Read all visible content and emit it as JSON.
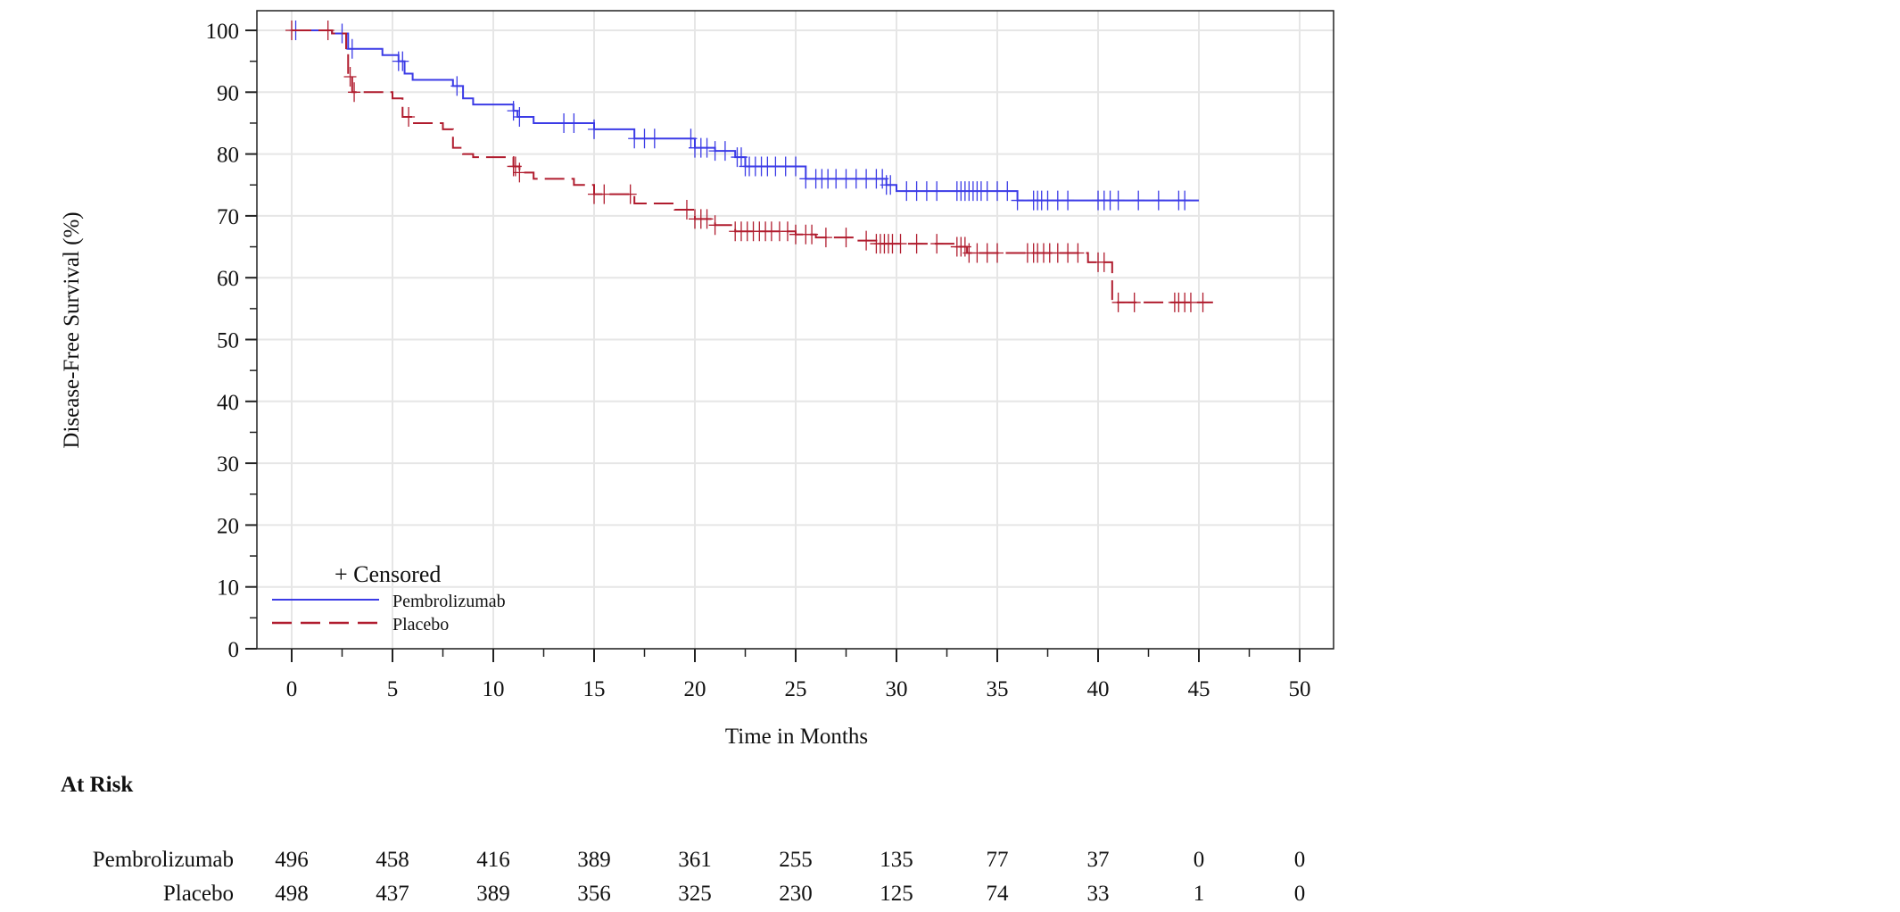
{
  "chart_data": {
    "type": "line",
    "subtype": "kaplan-meier step",
    "xlabel": "Time in Months",
    "ylabel": "Disease-Free Survival (%)",
    "xlim": [
      0,
      50
    ],
    "ylim": [
      0,
      100
    ],
    "xticks": [
      0,
      5,
      10,
      15,
      20,
      25,
      30,
      35,
      40,
      45,
      50
    ],
    "yticks": [
      0,
      10,
      20,
      30,
      40,
      50,
      60,
      70,
      80,
      90,
      100
    ],
    "grid": true,
    "legend": {
      "placement": "bottom-left",
      "censored_label": "+ Censored",
      "entries": [
        "Pembrolizumab",
        "Placebo"
      ]
    },
    "series": [
      {
        "name": "Pembrolizumab",
        "color": "#3b3be6",
        "style": "solid",
        "steps": [
          [
            0,
            100
          ],
          [
            2,
            99.5
          ],
          [
            2.8,
            97
          ],
          [
            4.5,
            96
          ],
          [
            5.3,
            95
          ],
          [
            5.6,
            93
          ],
          [
            6,
            92
          ],
          [
            8,
            91
          ],
          [
            8.5,
            89
          ],
          [
            9,
            88
          ],
          [
            11,
            87
          ],
          [
            11.2,
            86
          ],
          [
            12,
            85
          ],
          [
            15,
            84
          ],
          [
            17,
            82.5
          ],
          [
            20,
            81
          ],
          [
            21,
            80.5
          ],
          [
            22,
            79.5
          ],
          [
            22.5,
            78
          ],
          [
            25.5,
            76
          ],
          [
            29.5,
            75
          ],
          [
            30,
            74
          ],
          [
            36,
            72.5
          ],
          [
            45,
            72.5
          ]
        ],
        "censored": [
          0.2,
          2.5,
          3,
          5.3,
          5.5,
          8.2,
          11,
          11.3,
          13.5,
          14,
          15,
          17,
          17.5,
          18,
          19.8,
          20,
          20.3,
          20.6,
          21,
          21.5,
          22.1,
          22.3,
          22.5,
          22.7,
          23,
          23.3,
          23.6,
          24,
          24.5,
          25,
          25.5,
          26,
          26.3,
          26.6,
          27,
          27.5,
          28,
          28.5,
          29,
          29.3,
          29.5,
          29.7,
          30.5,
          31,
          31.5,
          32,
          33,
          33.2,
          33.4,
          33.6,
          33.8,
          34,
          34.2,
          34.5,
          35,
          35.5,
          36,
          36.8,
          37,
          37.2,
          37.5,
          38,
          38.5,
          40,
          40.3,
          40.6,
          41,
          42,
          43,
          44,
          44.3
        ]
      },
      {
        "name": "Placebo",
        "color": "#b01c2e",
        "style": "dashed",
        "steps": [
          [
            0,
            100
          ],
          [
            2,
            99.5
          ],
          [
            2.7,
            96
          ],
          [
            2.8,
            92.5
          ],
          [
            3,
            90
          ],
          [
            5,
            89
          ],
          [
            5.5,
            86
          ],
          [
            6,
            85
          ],
          [
            7.5,
            84
          ],
          [
            8,
            81
          ],
          [
            8.5,
            80
          ],
          [
            9,
            79.5
          ],
          [
            11,
            78
          ],
          [
            11.3,
            77
          ],
          [
            12,
            76
          ],
          [
            14,
            75
          ],
          [
            15,
            73.5
          ],
          [
            17,
            72
          ],
          [
            19,
            71
          ],
          [
            20,
            69.5
          ],
          [
            21,
            68.5
          ],
          [
            22,
            67.5
          ],
          [
            25,
            67
          ],
          [
            26,
            66.5
          ],
          [
            28,
            66
          ],
          [
            29,
            65.5
          ],
          [
            33,
            65
          ],
          [
            33.5,
            64
          ],
          [
            39.5,
            62.5
          ],
          [
            40.7,
            56
          ],
          [
            45.7,
            56
          ]
        ],
        "censored": [
          0,
          1.8,
          2.9,
          3.1,
          5.8,
          11,
          11.1,
          11.3,
          15,
          15.5,
          16.8,
          19.6,
          20,
          20.3,
          20.6,
          21,
          22,
          22.3,
          22.6,
          22.9,
          23.2,
          23.5,
          23.8,
          24.2,
          24.6,
          25,
          25.5,
          25.8,
          26.5,
          27.5,
          28.5,
          29,
          29.2,
          29.4,
          29.6,
          29.8,
          30.2,
          31,
          32,
          33,
          33.2,
          33.4,
          33.6,
          34,
          34.5,
          35,
          36.5,
          36.8,
          37,
          37.3,
          37.6,
          38,
          38.5,
          39,
          40,
          40.3,
          41,
          41.8,
          43.8,
          44,
          44.3,
          44.6,
          45.2
        ]
      }
    ],
    "at_risk": {
      "title": "At Risk",
      "rows": [
        {
          "label": "Pembrolizumab",
          "values": [
            496,
            458,
            416,
            389,
            361,
            255,
            135,
            77,
            37,
            0,
            0
          ]
        },
        {
          "label": "Placebo",
          "values": [
            498,
            437,
            389,
            356,
            325,
            230,
            125,
            74,
            33,
            1,
            0
          ]
        }
      ]
    }
  }
}
